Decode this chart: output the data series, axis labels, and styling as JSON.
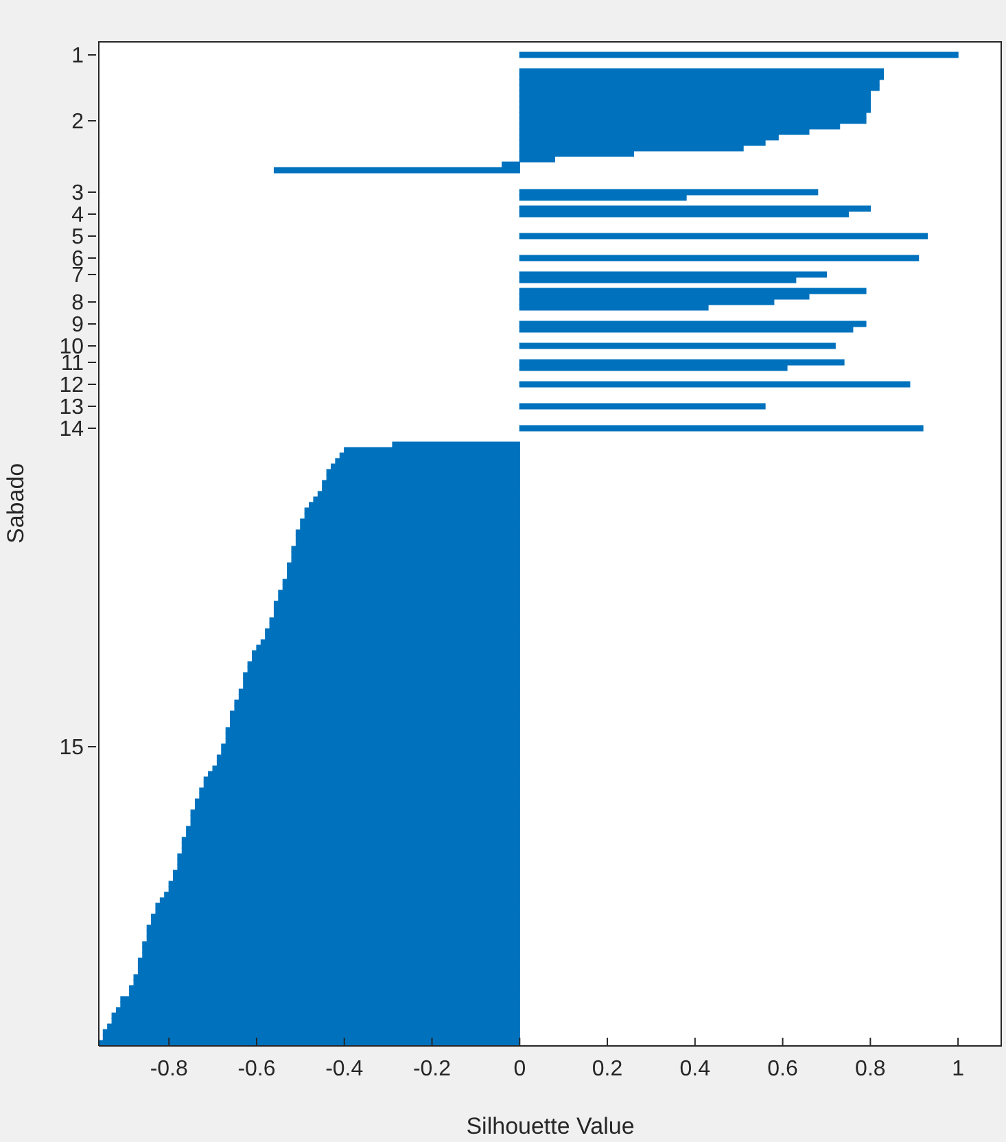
{
  "chart_data": {
    "type": "bar",
    "orientation": "horizontal",
    "xlabel": "Silhouette Value",
    "ylabel": "Sabado",
    "color": "#0072bd",
    "xlim": [
      -0.96,
      1.1
    ],
    "xticks": [
      -0.8,
      -0.6,
      -0.4,
      -0.2,
      0,
      0.2,
      0.4,
      0.6,
      0.8,
      1
    ],
    "categories": [
      null,
      null,
      "1",
      null,
      null,
      null,
      null,
      null,
      null,
      null,
      null,
      null,
      null,
      null,
      "2",
      null,
      null,
      null,
      null,
      null,
      null,
      null,
      null,
      null,
      null,
      null,
      null,
      "3",
      null,
      null,
      null,
      "4",
      null,
      null,
      null,
      "5",
      null,
      null,
      null,
      "6",
      null,
      null,
      "7",
      null,
      null,
      null,
      null,
      "8",
      null,
      null,
      null,
      "9",
      null,
      null,
      null,
      "10",
      null,
      null,
      "11",
      null,
      null,
      null,
      "12",
      null,
      null,
      null,
      "13",
      null,
      null,
      null,
      "14",
      null,
      null,
      null,
      null,
      null,
      null,
      null,
      null,
      null,
      null,
      null,
      null,
      null,
      null,
      null,
      null,
      null,
      null,
      null,
      null,
      null,
      null,
      null,
      null,
      null,
      null,
      null,
      null,
      null,
      null,
      null,
      null,
      null,
      null,
      null,
      null,
      null,
      null,
      null,
      null,
      null,
      null,
      null,
      null,
      null,
      null,
      null,
      null,
      null,
      null,
      null,
      null,
      null,
      null,
      null,
      null,
      null,
      "15",
      null,
      null,
      null,
      null,
      null,
      null,
      null,
      null,
      null,
      null,
      null,
      null,
      null,
      null,
      null,
      null,
      null,
      null,
      null,
      null,
      null,
      null,
      null,
      null,
      null,
      null,
      null,
      null,
      null,
      null,
      null,
      null,
      null,
      null,
      null,
      null,
      null,
      null,
      null,
      null,
      null,
      null,
      null,
      null,
      null,
      null,
      null,
      null,
      null,
      null,
      null,
      null,
      null,
      null
    ],
    "values": [
      null,
      null,
      1.0,
      null,
      null,
      0.83,
      0.83,
      0.82,
      0.82,
      0.8,
      0.8,
      0.8,
      0.8,
      0.79,
      0.79,
      0.73,
      0.66,
      0.59,
      0.56,
      0.51,
      0.26,
      0.08,
      -0.04,
      -0.56,
      null,
      null,
      null,
      0.68,
      0.38,
      null,
      0.8,
      0.75,
      null,
      null,
      null,
      0.93,
      null,
      null,
      null,
      0.91,
      null,
      null,
      0.7,
      0.63,
      null,
      0.79,
      0.66,
      0.58,
      0.43,
      null,
      null,
      0.79,
      0.76,
      null,
      null,
      0.72,
      null,
      null,
      0.74,
      0.61,
      null,
      null,
      0.89,
      null,
      null,
      null,
      0.56,
      null,
      null,
      null,
      0.92,
      null,
      null,
      -0.29,
      -0.4,
      -0.41,
      -0.42,
      -0.43,
      -0.44,
      -0.44,
      -0.45,
      -0.45,
      -0.46,
      -0.47,
      -0.48,
      -0.49,
      -0.49,
      -0.5,
      -0.5,
      -0.51,
      -0.51,
      -0.51,
      -0.52,
      -0.52,
      -0.52,
      -0.53,
      -0.53,
      -0.53,
      -0.54,
      -0.54,
      -0.55,
      -0.55,
      -0.56,
      -0.56,
      -0.56,
      -0.57,
      -0.57,
      -0.58,
      -0.58,
      -0.59,
      -0.6,
      -0.61,
      -0.61,
      -0.62,
      -0.62,
      -0.63,
      -0.63,
      -0.63,
      -0.64,
      -0.64,
      -0.65,
      -0.65,
      -0.66,
      -0.66,
      -0.66,
      -0.67,
      -0.67,
      -0.67,
      -0.68,
      -0.68,
      -0.69,
      -0.69,
      -0.7,
      -0.71,
      -0.72,
      -0.72,
      -0.73,
      -0.73,
      -0.74,
      -0.74,
      -0.75,
      -0.75,
      -0.75,
      -0.76,
      -0.76,
      -0.77,
      -0.77,
      -0.77,
      -0.78,
      -0.78,
      -0.78,
      -0.79,
      -0.79,
      -0.8,
      -0.8,
      -0.81,
      -0.82,
      -0.83,
      -0.83,
      -0.84,
      -0.84,
      -0.85,
      -0.85,
      -0.85,
      -0.86,
      -0.86,
      -0.86,
      -0.87,
      -0.87,
      -0.87,
      -0.88,
      -0.88,
      -0.89,
      -0.89,
      -0.91,
      -0.91,
      -0.92,
      -0.93,
      -0.93,
      -0.94,
      -0.95,
      -0.95,
      -0.96
    ]
  }
}
